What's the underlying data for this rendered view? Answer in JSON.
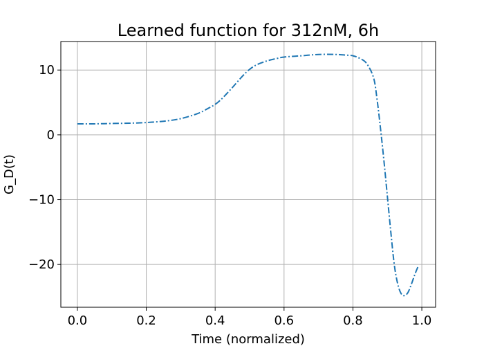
{
  "chart_data": {
    "type": "line",
    "title": "Learned function for 312nM, 6h",
    "xlabel": "Time (normalized)",
    "ylabel": "G_D(t)",
    "xlim": [
      -0.048,
      1.04
    ],
    "ylim": [
      -26.6,
      14.4
    ],
    "xticks": [
      0.0,
      0.2,
      0.4,
      0.6,
      0.8,
      1.0
    ],
    "xtick_labels": [
      "0.0",
      "0.2",
      "0.4",
      "0.6",
      "0.8",
      "1.0"
    ],
    "yticks": [
      -20,
      -10,
      0,
      10
    ],
    "ytick_labels": [
      "−20",
      "−10",
      "0",
      "10"
    ],
    "grid": true,
    "line_style": "dashdot",
    "color": "#1f77b4",
    "series": [
      {
        "x": [
          0.0,
          0.05,
          0.1,
          0.15,
          0.2,
          0.25,
          0.3,
          0.35,
          0.38,
          0.4,
          0.42,
          0.45,
          0.48,
          0.5,
          0.52,
          0.55,
          0.58,
          0.6,
          0.65,
          0.7,
          0.75,
          0.78,
          0.8,
          0.82,
          0.84,
          0.86,
          0.87,
          0.88,
          0.89,
          0.9,
          0.91,
          0.92,
          0.93,
          0.94,
          0.95,
          0.96,
          0.97,
          0.98,
          0.99
        ],
        "y": [
          1.7,
          1.7,
          1.75,
          1.8,
          1.9,
          2.1,
          2.5,
          3.3,
          4.1,
          4.7,
          5.6,
          7.3,
          9.1,
          10.1,
          10.8,
          11.4,
          11.8,
          12.0,
          12.2,
          12.4,
          12.4,
          12.3,
          12.2,
          11.8,
          11.0,
          8.8,
          5.5,
          1.0,
          -4.0,
          -9.5,
          -15.0,
          -20.0,
          -23.0,
          -24.5,
          -24.8,
          -24.3,
          -23.0,
          -21.5,
          -20.2
        ]
      }
    ]
  }
}
